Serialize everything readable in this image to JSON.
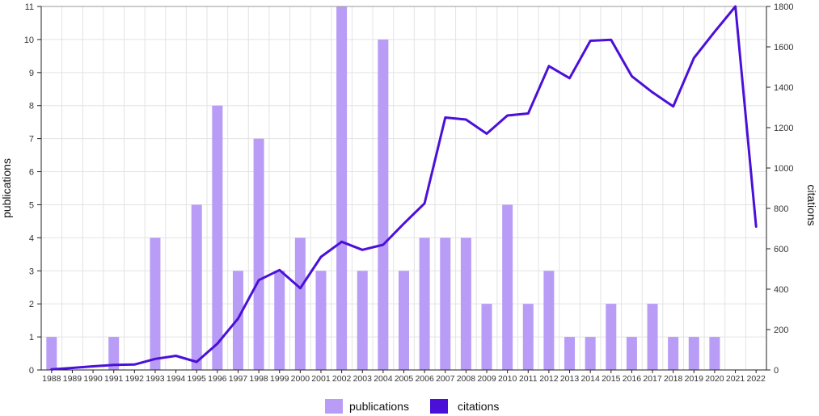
{
  "chart_data": {
    "type": "bar",
    "categories": [
      "1988",
      "1989",
      "1990",
      "1991",
      "1992",
      "1993",
      "1994",
      "1995",
      "1996",
      "1997",
      "1998",
      "1999",
      "2000",
      "2001",
      "2002",
      "2003",
      "2004",
      "2005",
      "2006",
      "2007",
      "2008",
      "2009",
      "2010",
      "2011",
      "2012",
      "2013",
      "2014",
      "2015",
      "2016",
      "2017",
      "2018",
      "2019",
      "2020",
      "2021",
      "2022"
    ],
    "series": [
      {
        "name": "publications",
        "type": "bar",
        "axis": "left",
        "color": "#b89cf6",
        "values": [
          1,
          0,
          0,
          1,
          0,
          4,
          0,
          5,
          8,
          3,
          7,
          3,
          4,
          3,
          11,
          3,
          10,
          3,
          4,
          4,
          4,
          2,
          5,
          2,
          3,
          1,
          1,
          2,
          1,
          2,
          1,
          1,
          1,
          0,
          0
        ]
      },
      {
        "name": "citations",
        "type": "line",
        "axis": "right",
        "color": "#4b10d8",
        "values": [
          3,
          10,
          18,
          25,
          27,
          55,
          70,
          40,
          130,
          255,
          445,
          495,
          405,
          560,
          635,
          595,
          620,
          725,
          825,
          1250,
          1240,
          1170,
          1260,
          1270,
          1505,
          1445,
          1630,
          1635,
          1455,
          1375,
          1305,
          1545,
          1675,
          1800,
          710
        ]
      }
    ],
    "ylabel": "publications",
    "y2label": "citations",
    "ylim": [
      0,
      11
    ],
    "y2lim": [
      0,
      1800
    ],
    "yticks": [
      0,
      1,
      2,
      3,
      4,
      5,
      6,
      7,
      8,
      9,
      10,
      11
    ],
    "y2ticks": [
      0,
      200,
      400,
      600,
      800,
      1000,
      1200,
      1400,
      1600,
      1800
    ],
    "grid": true,
    "legend_position": "bottom-center"
  }
}
